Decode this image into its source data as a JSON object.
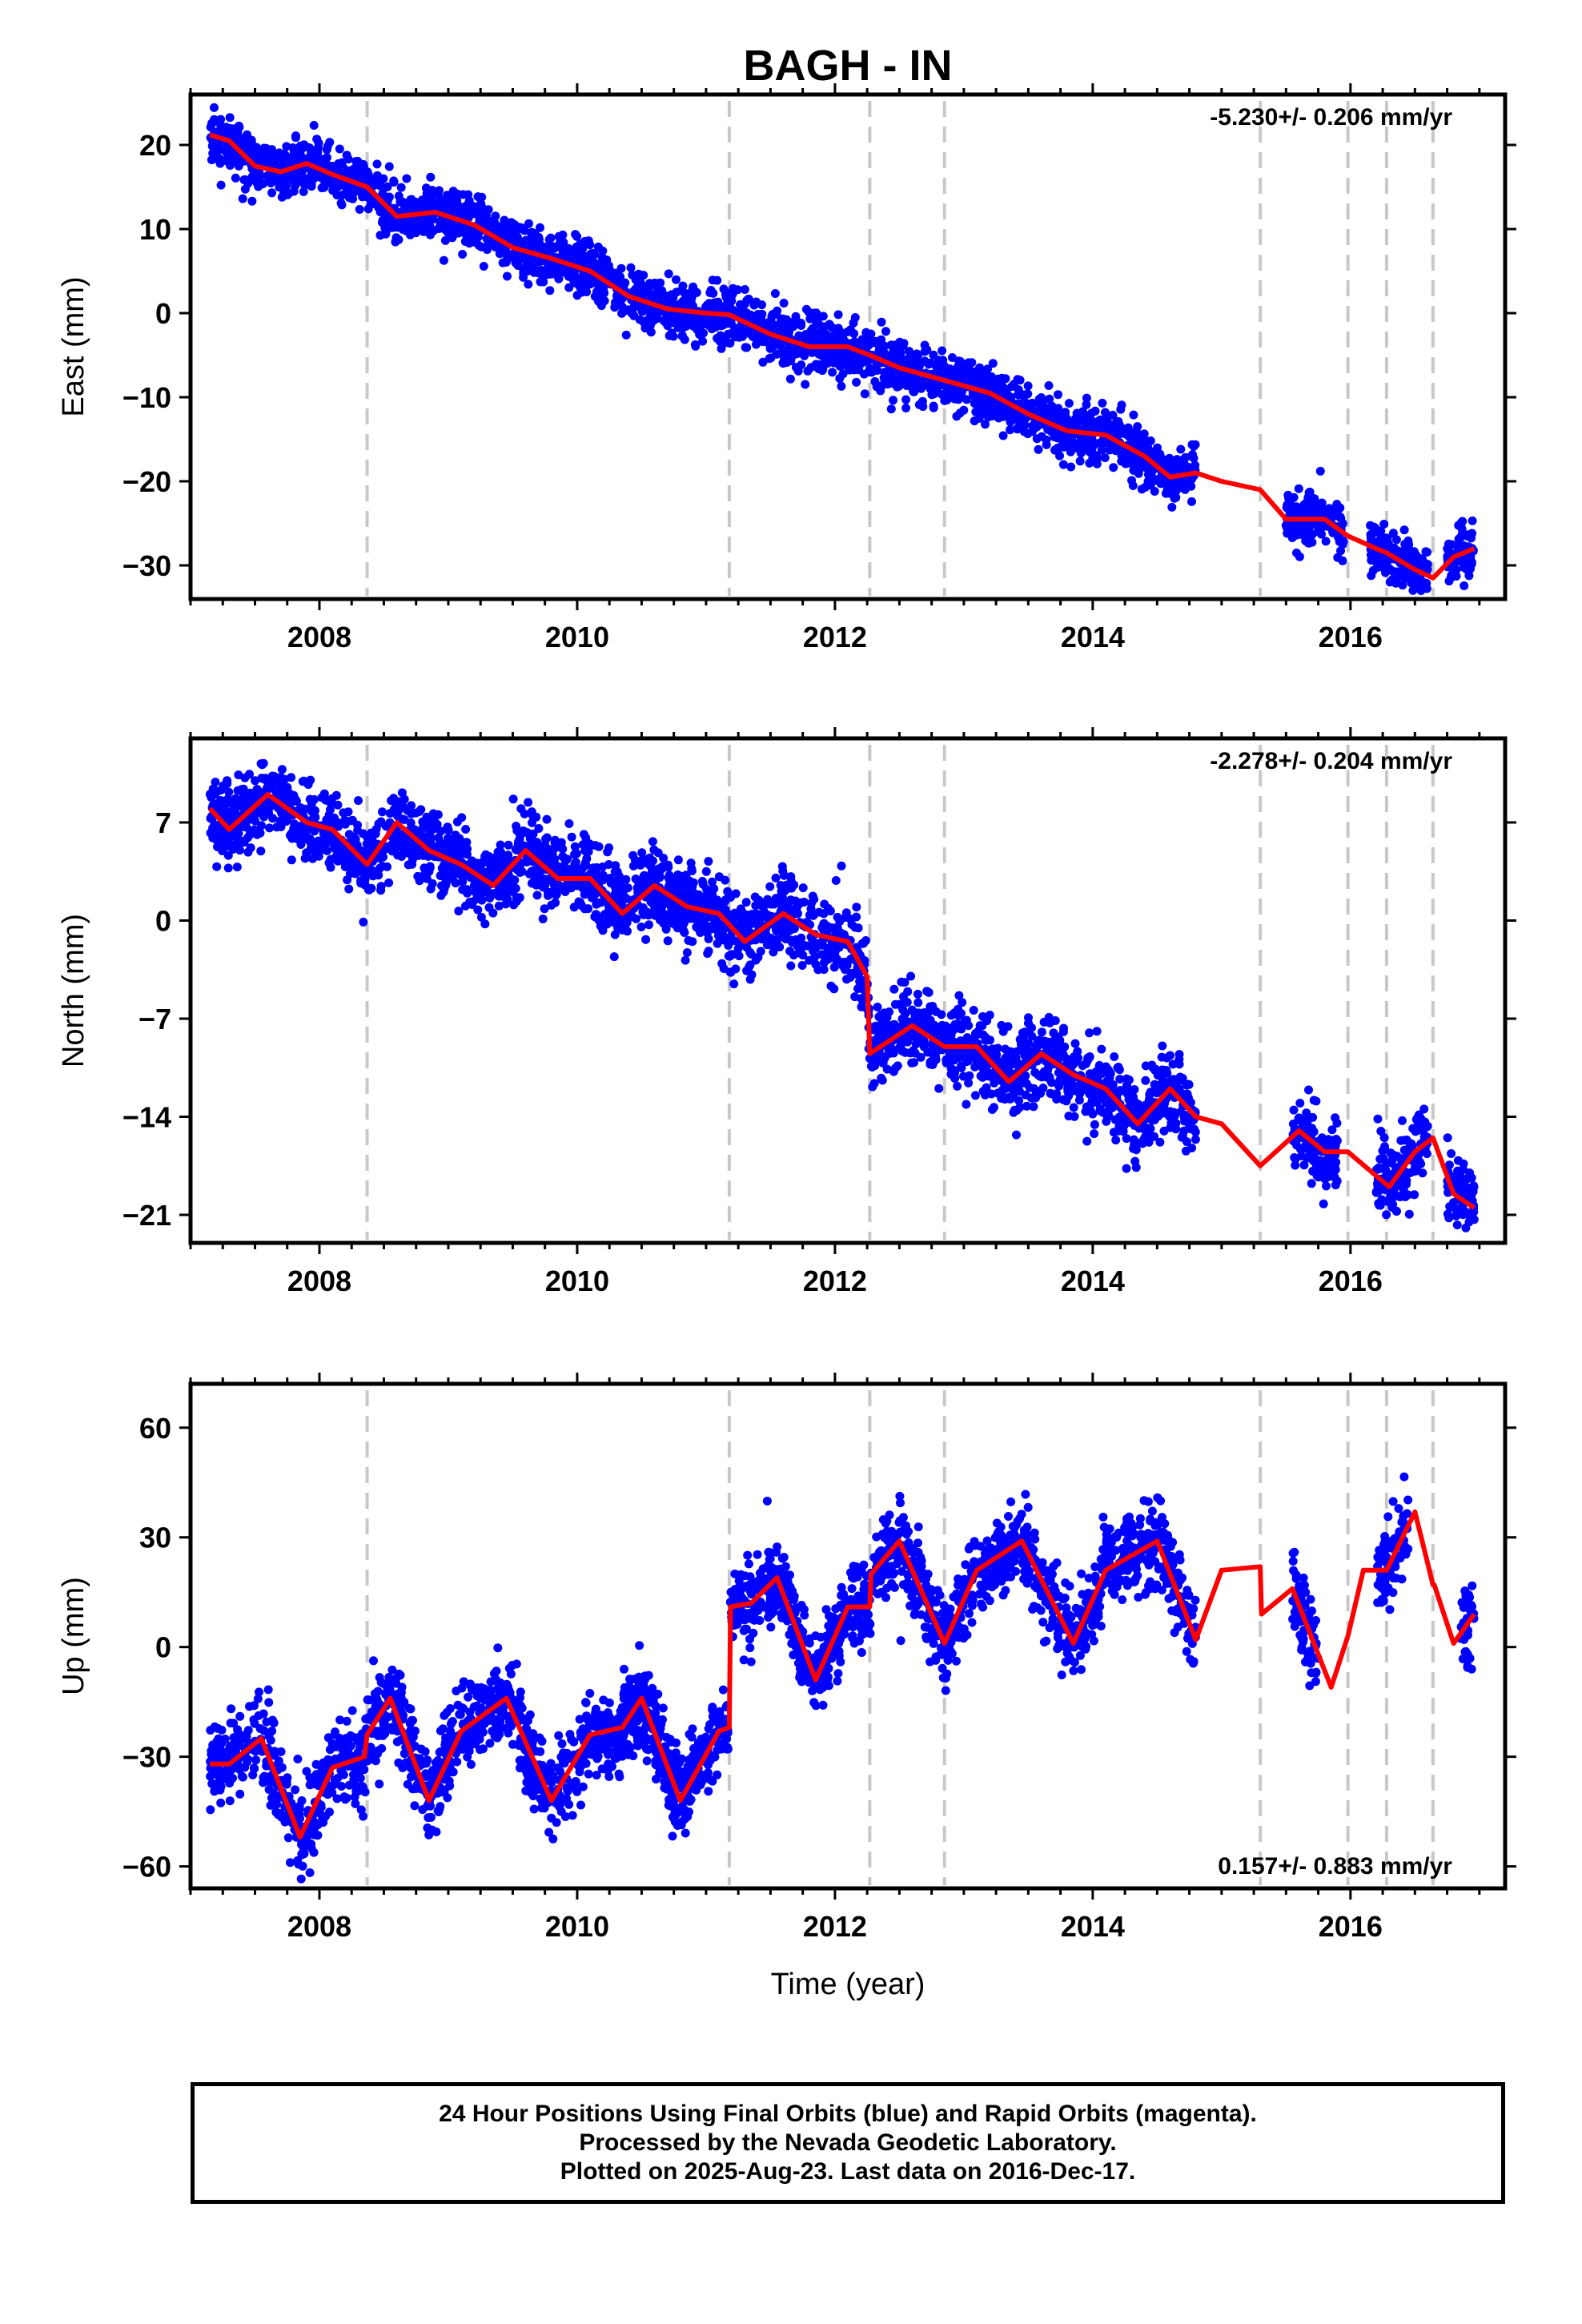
{
  "title": "BAGH - IN",
  "xlabel": "Time (year)",
  "footer": {
    "line1": "24 Hour Positions Using Final Orbits (blue) and Rapid Orbits (magenta).",
    "line2": "Processed by the Nevada Geodetic Laboratory.",
    "line3": "Plotted on 2025-Aug-23. Last data on 2016-Dec-17."
  },
  "colors": {
    "data": "#0000ff",
    "model": "#ff0000",
    "steps": "#c8c8c8"
  },
  "chart_data": [
    {
      "type": "scatter",
      "component": "east",
      "ylabel": "East (mm)",
      "rate": "-5.230+/- 0.206 mm/yr",
      "xlim": [
        2007.0,
        2017.2
      ],
      "ylim": [
        -34,
        26
      ],
      "yticks": [
        20,
        10,
        0,
        -10,
        -20,
        -30
      ],
      "xticks": [
        2008,
        2010,
        2012,
        2014,
        2016
      ],
      "steps": [
        2008.37,
        2011.18,
        2012.27,
        2012.85,
        2015.3,
        2015.98,
        2016.28,
        2016.64
      ],
      "segments": [
        [
          2007.15,
          2014.8
        ],
        [
          2015.5,
          2015.95
        ],
        [
          2016.15,
          2016.6
        ],
        [
          2016.75,
          2016.96
        ]
      ],
      "series": [
        {
          "role": "model",
          "x": [
            2007.15,
            2007.3,
            2007.5,
            2007.7,
            2007.9,
            2008.1,
            2008.37,
            2008.6,
            2008.9,
            2009.2,
            2009.5,
            2009.8,
            2010.1,
            2010.4,
            2010.7,
            2011.0,
            2011.18,
            2011.5,
            2011.8,
            2012.1,
            2012.27,
            2012.5,
            2012.85,
            2013.2,
            2013.5,
            2013.8,
            2014.1,
            2014.4,
            2014.6,
            2014.8,
            2015.0,
            2015.3,
            2015.5,
            2015.8,
            2015.98,
            2016.2,
            2016.28,
            2016.5,
            2016.64,
            2016.8,
            2016.96
          ],
          "y": [
            21.2,
            20.5,
            17.5,
            16.8,
            17.8,
            16.5,
            15.0,
            11.5,
            12.0,
            10.5,
            7.8,
            6.5,
            5.0,
            2.0,
            0.5,
            0.0,
            -0.2,
            -2.5,
            -4.0,
            -4.0,
            -5.0,
            -6.5,
            -8.0,
            -9.5,
            -12.0,
            -14.0,
            -14.5,
            -17.0,
            -19.5,
            -19.0,
            -20.0,
            -21.0,
            -24.5,
            -24.5,
            -26.5,
            -28.0,
            -28.5,
            -30.5,
            -31.5,
            -29.0,
            -28.0
          ]
        }
      ]
    },
    {
      "type": "scatter",
      "component": "north",
      "ylabel": "North (mm)",
      "rate": "-2.278+/- 0.204 mm/yr",
      "xlim": [
        2007.0,
        2017.2
      ],
      "ylim": [
        -23,
        13
      ],
      "yticks": [
        7,
        0,
        -7,
        -14,
        -21
      ],
      "xticks": [
        2008,
        2010,
        2012,
        2014,
        2016
      ],
      "steps": [
        2008.37,
        2011.18,
        2012.27,
        2012.85,
        2015.3,
        2015.98,
        2016.28,
        2016.64
      ],
      "segments": [
        [
          2007.15,
          2014.8
        ],
        [
          2015.55,
          2015.9
        ],
        [
          2016.2,
          2016.6
        ],
        [
          2016.75,
          2016.96
        ]
      ],
      "series": [
        {
          "role": "model",
          "x": [
            2007.15,
            2007.3,
            2007.6,
            2007.9,
            2008.1,
            2008.37,
            2008.6,
            2008.85,
            2009.1,
            2009.35,
            2009.6,
            2009.85,
            2010.1,
            2010.35,
            2010.6,
            2010.85,
            2011.1,
            2011.3,
            2011.6,
            2011.85,
            2012.1,
            2012.25,
            2012.27,
            2012.6,
            2012.85,
            2013.1,
            2013.35,
            2013.6,
            2013.85,
            2014.1,
            2014.35,
            2014.6,
            2014.8,
            2015.0,
            2015.3,
            2015.6,
            2015.8,
            2015.98,
            2016.3,
            2016.5,
            2016.64,
            2016.8,
            2016.96
          ],
          "y": [
            8.0,
            6.5,
            9.0,
            7.0,
            6.5,
            4.0,
            7.0,
            5.0,
            4.0,
            2.5,
            5.0,
            3.0,
            3.0,
            0.5,
            2.5,
            1.0,
            0.5,
            -1.5,
            0.5,
            -1.0,
            -1.5,
            -4.0,
            -9.5,
            -7.5,
            -9.0,
            -9.0,
            -11.5,
            -9.5,
            -11.0,
            -12.0,
            -14.5,
            -12.0,
            -14.0,
            -14.5,
            -17.5,
            -15.0,
            -16.5,
            -16.5,
            -19.0,
            -16.5,
            -15.5,
            -19.5,
            -20.5
          ]
        }
      ]
    },
    {
      "type": "scatter",
      "component": "up",
      "ylabel": "Up (mm)",
      "rate": "0.157+/- 0.883 mm/yr",
      "xlim": [
        2007.0,
        2017.2
      ],
      "ylim": [
        -66,
        72
      ],
      "yticks": [
        60,
        30,
        0,
        -30,
        -60
      ],
      "xticks": [
        2008,
        2010,
        2012,
        2014,
        2016
      ],
      "steps": [
        2008.37,
        2011.18,
        2012.27,
        2012.85,
        2015.3,
        2015.98,
        2016.28,
        2016.64
      ],
      "segments": [
        [
          2007.15,
          2010.85
        ],
        [
          2010.35,
          2010.75
        ],
        [
          2010.85,
          2011.55
        ],
        [
          2011.55,
          2014.8
        ],
        [
          2015.55,
          2015.75
        ],
        [
          2016.2,
          2016.45
        ],
        [
          2016.85,
          2016.96
        ]
      ],
      "series": [
        {
          "role": "model",
          "x": [
            2007.15,
            2007.3,
            2007.55,
            2007.85,
            2008.1,
            2008.35,
            2008.37,
            2008.55,
            2008.85,
            2009.1,
            2009.45,
            2009.8,
            2010.1,
            2010.35,
            2010.5,
            2010.8,
            2011.1,
            2011.18,
            2011.19,
            2011.35,
            2011.55,
            2011.85,
            2012.1,
            2012.27,
            2012.28,
            2012.5,
            2012.85,
            2013.1,
            2013.45,
            2013.85,
            2014.1,
            2014.5,
            2014.8,
            2015.0,
            2015.3,
            2015.31,
            2015.55,
            2015.85,
            2015.98,
            2016.1,
            2016.28,
            2016.5,
            2016.64,
            2016.65,
            2016.8,
            2016.96
          ],
          "y": [
            -32,
            -32,
            -25,
            -52,
            -33,
            -30,
            -24,
            -14,
            -42,
            -23,
            -14,
            -42,
            -24,
            -22,
            -14,
            -42,
            -23,
            -22,
            11,
            12,
            19,
            -9,
            11,
            11,
            20,
            29,
            1,
            21,
            29,
            1,
            21,
            29,
            2,
            21,
            22,
            9,
            16,
            -11,
            3,
            21,
            21,
            37,
            17,
            17,
            1,
            9
          ]
        }
      ]
    }
  ]
}
